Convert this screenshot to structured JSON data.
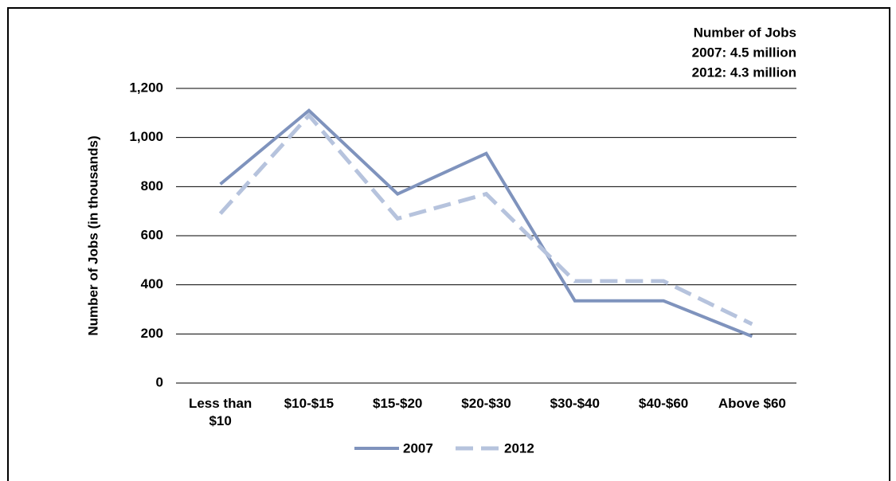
{
  "chart_data": {
    "type": "line",
    "annotations": [
      "Number of Jobs",
      "2007: 4.5 million",
      "2012: 4.3 million"
    ],
    "y_label": "Number of Jobs (in thousands)",
    "categories": [
      "Less than $10",
      "$10-$15",
      "$15-$20",
      "$20-$30",
      "$30-$40",
      "$40-$60",
      "Above $60"
    ],
    "series": [
      {
        "name": "2007",
        "color": "#7f93bd",
        "dashed": false,
        "values": [
          810,
          1110,
          770,
          935,
          335,
          335,
          190
        ]
      },
      {
        "name": "2012",
        "color": "#b6c3dd",
        "dashed": true,
        "values": [
          690,
          1090,
          670,
          770,
          415,
          415,
          240
        ]
      }
    ],
    "ylim": [
      0,
      1200
    ],
    "yticks": [
      0,
      200,
      400,
      600,
      800,
      {
        "value": 1000,
        "label": "1,000"
      },
      {
        "value": 1200,
        "label": "1,200"
      }
    ],
    "grid": true,
    "legend": "bottom"
  }
}
